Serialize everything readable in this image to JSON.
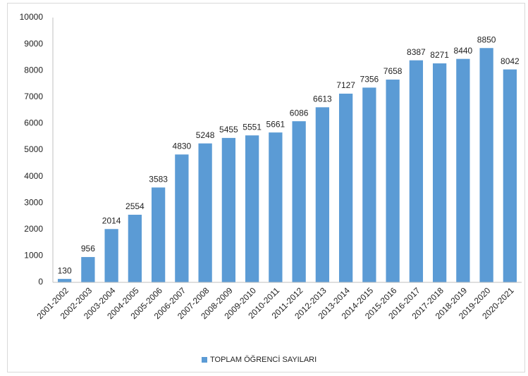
{
  "chart_data": {
    "type": "bar",
    "categories": [
      "2001-2002",
      "2002-2003",
      "2003-2004",
      "2004-2005",
      "2005-2006",
      "2006-2007",
      "2007-2008",
      "2008-2009",
      "2009-2010",
      "2010-2011",
      "2011-2012",
      "2012-2013",
      "2013-2014",
      "2014-2015",
      "2015-2016",
      "2016-2017",
      "2017-2018",
      "2018-2019",
      "2019-2020",
      "2020-2021"
    ],
    "series": [
      {
        "name": "TOPLAM ÖĞRENCİ SAYILARI",
        "color": "#5b9bd5",
        "values": [
          130,
          956,
          2014,
          2554,
          3583,
          4830,
          5248,
          5455,
          5551,
          5661,
          6086,
          6613,
          7127,
          7356,
          7658,
          8387,
          8271,
          8440,
          8850,
          8042
        ]
      }
    ],
    "ylim": [
      0,
      10000
    ],
    "yticks": [
      0,
      1000,
      2000,
      3000,
      4000,
      5000,
      6000,
      7000,
      8000,
      9000,
      10000
    ],
    "grid": false,
    "legend": "bottom"
  }
}
